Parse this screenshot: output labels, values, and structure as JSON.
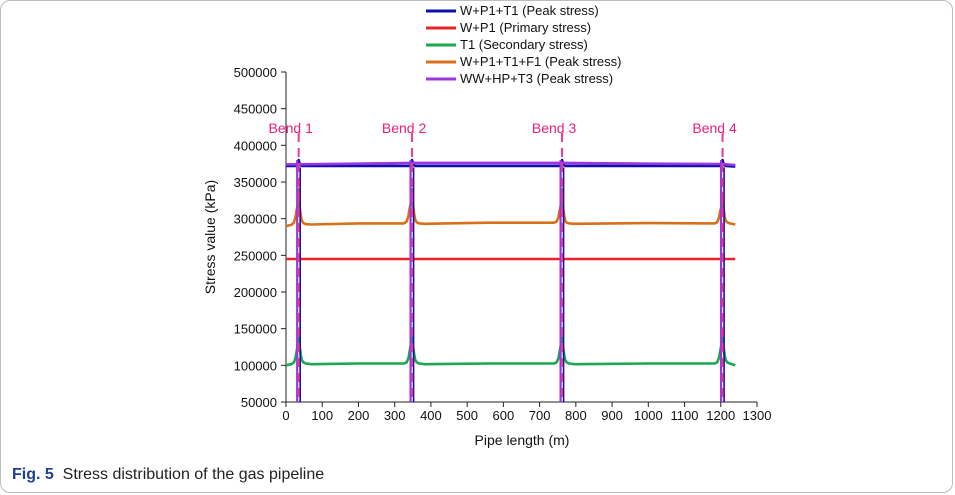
{
  "caption": {
    "label": "Fig. 5",
    "text": "Stress distribution of the gas pipeline"
  },
  "chart_data": {
    "type": "line",
    "title": "",
    "xlabel": "Pipe length (m)",
    "ylabel": "Stress value (kPa)",
    "xlim": [
      0,
      1300
    ],
    "ylim": [
      50000,
      500000
    ],
    "xticks": [
      0,
      100,
      200,
      300,
      400,
      500,
      600,
      700,
      800,
      900,
      1000,
      1100,
      1200,
      1300
    ],
    "yticks": [
      50000,
      100000,
      150000,
      200000,
      250000,
      300000,
      350000,
      400000,
      450000,
      500000
    ],
    "xtick_labels": [
      "0",
      "100",
      "200",
      "300",
      "400",
      "500",
      "600",
      "700",
      "800",
      "900",
      "1000",
      "1100",
      "1200",
      "1300"
    ],
    "ytick_labels": [
      "50000",
      "100000",
      "150000",
      "200000",
      "250000",
      "300000",
      "350000",
      "400000",
      "450000",
      "500000"
    ],
    "grid": false,
    "legend_position": "top-center",
    "bends": [
      {
        "label": "Bend 1",
        "x": 35
      },
      {
        "label": "Bend 2",
        "x": 348
      },
      {
        "label": "Bend 3",
        "x": 762
      },
      {
        "label": "Bend 4",
        "x": 1205
      }
    ],
    "series": [
      {
        "name": "W+P1+T1 (Peak stress)",
        "color": "#1010b0",
        "x": [
          0,
          26,
          30,
          33,
          35,
          37,
          40,
          44,
          340,
          344,
          346,
          348,
          350,
          353,
          357,
          754,
          758,
          760,
          762,
          764,
          767,
          771,
          1197,
          1201,
          1203,
          1205,
          1207,
          1210,
          1214,
          1240
        ],
        "y": [
          372000,
          372000,
          373000,
          376000,
          380000,
          376000,
          373000,
          372000,
          372000,
          373000,
          376000,
          380000,
          376000,
          373000,
          372000,
          372000,
          373000,
          376000,
          380000,
          376000,
          373000,
          372000,
          372000,
          373000,
          376000,
          380000,
          376000,
          373000,
          372000,
          371000
        ]
      },
      {
        "name": "W+P1 (Primary stress)",
        "color": "#e8242a",
        "x": [
          0,
          1240
        ],
        "y": [
          245000,
          245000
        ]
      },
      {
        "name": "T1 (Secondary stress)",
        "color": "#1aa84f",
        "x": [
          0,
          15,
          22,
          26,
          29,
          32,
          34,
          35,
          36,
          37,
          39,
          41,
          44,
          48,
          55,
          70,
          200,
          325,
          333,
          338,
          341,
          344,
          346,
          347,
          348,
          349,
          350,
          352,
          354,
          357,
          361,
          368,
          383,
          560,
          740,
          747,
          752,
          755,
          758,
          760,
          761,
          762,
          763,
          764,
          766,
          768,
          771,
          775,
          782,
          797,
          1000,
          1183,
          1190,
          1195,
          1198,
          1201,
          1203,
          1204,
          1205,
          1206,
          1207,
          1209,
          1211,
          1214,
          1218,
          1225,
          1240
        ],
        "y": [
          100000,
          101500,
          104000,
          110000,
          118000,
          127000,
          129000,
          150000,
          129000,
          127000,
          122000,
          114000,
          107000,
          104000,
          102500,
          101500,
          102500,
          102500,
          104000,
          110000,
          118000,
          127000,
          129000,
          150000,
          150000,
          129000,
          127000,
          122000,
          114000,
          107000,
          104000,
          102500,
          101500,
          102500,
          102500,
          104000,
          110000,
          118000,
          126000,
          128000,
          150000,
          150000,
          128000,
          126000,
          121000,
          113000,
          107000,
          104000,
          102500,
          101500,
          102500,
          102500,
          104000,
          110000,
          118000,
          126000,
          128000,
          150000,
          150000,
          128000,
          126000,
          121000,
          113000,
          107000,
          104000,
          102500,
          100000
        ]
      },
      {
        "name": "W+P1+T1+F1 (Peak stress)",
        "color": "#d8701a",
        "x": [
          0,
          15,
          22,
          26,
          29,
          32,
          34,
          35,
          36,
          37,
          39,
          41,
          44,
          48,
          55,
          70,
          200,
          325,
          333,
          338,
          341,
          344,
          346,
          347,
          348,
          349,
          350,
          352,
          354,
          357,
          361,
          368,
          383,
          560,
          740,
          747,
          752,
          755,
          758,
          760,
          761,
          762,
          763,
          764,
          766,
          768,
          771,
          775,
          782,
          797,
          1000,
          1183,
          1190,
          1195,
          1198,
          1201,
          1203,
          1204,
          1205,
          1206,
          1207,
          1209,
          1211,
          1214,
          1218,
          1225,
          1240
        ],
        "y": [
          290000,
          291500,
          295000,
          302000,
          311000,
          318000,
          320000,
          340000,
          320000,
          318000,
          312000,
          304000,
          297000,
          294000,
          292500,
          292000,
          293500,
          293500,
          296000,
          304000,
          313000,
          320000,
          323000,
          340000,
          340000,
          323000,
          320000,
          314000,
          305000,
          298000,
          295000,
          293500,
          293000,
          294500,
          294500,
          296000,
          302000,
          310000,
          317000,
          319000,
          340000,
          340000,
          319000,
          317000,
          311000,
          303000,
          297000,
          294500,
          293500,
          293000,
          294000,
          293500,
          295000,
          301000,
          309000,
          315000,
          317000,
          335000,
          335000,
          317000,
          315000,
          310000,
          302000,
          297000,
          295000,
          293500,
          292000
        ]
      },
      {
        "name": "WW+HP+T3 (Peak stress)",
        "color": "#9b35e0",
        "x": [
          0,
          200,
          348,
          500,
          762,
          1000,
          1205,
          1240
        ],
        "y": [
          374000,
          375000,
          376000,
          376000,
          376000,
          375000,
          374500,
          373000
        ]
      }
    ],
    "spikes": {
      "x": [
        35,
        348,
        762,
        1205
      ],
      "min_y": 50000,
      "max_y": 380000
    }
  }
}
